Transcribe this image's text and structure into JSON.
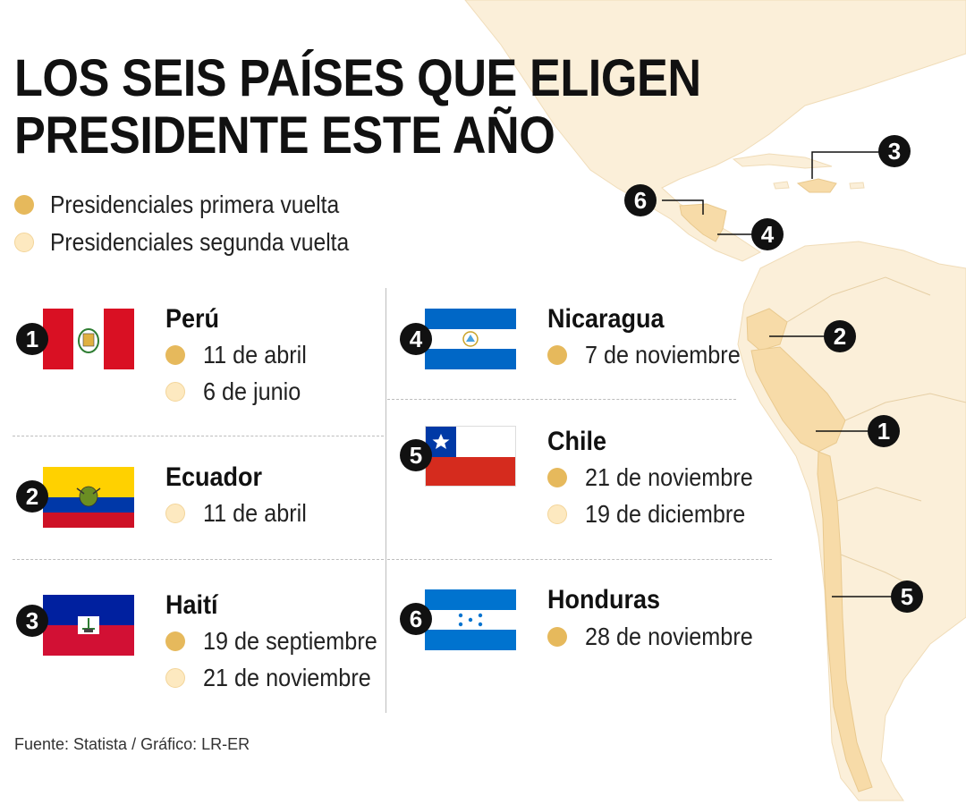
{
  "title_line1": "LOS SEIS PAÍSES QUE ELIGEN",
  "title_line2": "PRESIDENTE ESTE AÑO",
  "legend": {
    "first_round": "Presidenciales primera vuelta",
    "second_round": "Presidenciales segunda vuelta"
  },
  "countries": [
    {
      "number": "1",
      "name": "Perú",
      "dates": [
        {
          "round": "first",
          "text": "11 de abril"
        },
        {
          "round": "second",
          "text": "6 de junio"
        }
      ]
    },
    {
      "number": "2",
      "name": "Ecuador",
      "dates": [
        {
          "round": "second",
          "text": "11 de abril"
        }
      ]
    },
    {
      "number": "3",
      "name": "Haití",
      "dates": [
        {
          "round": "first",
          "text": "19 de septiembre"
        },
        {
          "round": "second",
          "text": "21 de noviembre"
        }
      ]
    },
    {
      "number": "4",
      "name": "Nicaragua",
      "dates": [
        {
          "round": "first",
          "text": "7 de noviembre"
        }
      ]
    },
    {
      "number": "5",
      "name": "Chile",
      "dates": [
        {
          "round": "first",
          "text": "21 de noviembre"
        },
        {
          "round": "second",
          "text": "19 de diciembre"
        }
      ]
    },
    {
      "number": "6",
      "name": "Honduras",
      "dates": [
        {
          "round": "first",
          "text": "28 de noviembre"
        }
      ]
    }
  ],
  "source": "Fuente: Statista / Gráfico: LR-ER",
  "colors": {
    "first_round": "#e6b95c",
    "second_round": "#fde9c0",
    "map_land": "#fbefd9",
    "map_highlight": "#f7dba8",
    "badge": "#111111"
  }
}
